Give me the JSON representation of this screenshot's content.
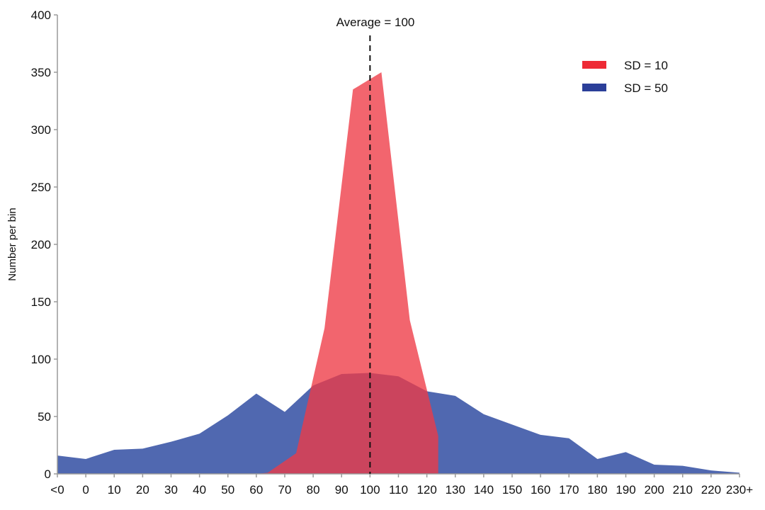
{
  "chart_data": {
    "type": "area",
    "title": "",
    "xlabel": "",
    "ylabel": "Number per bin",
    "ylim": [
      0,
      400
    ],
    "yticks": [
      0,
      50,
      100,
      150,
      200,
      250,
      300,
      350,
      400
    ],
    "categories": [
      "<0",
      "0",
      "10",
      "20",
      "30",
      "40",
      "50",
      "60",
      "70",
      "80",
      "90",
      "100",
      "110",
      "120",
      "130",
      "140",
      "150",
      "160",
      "170",
      "180",
      "190",
      "200",
      "210",
      "220",
      "230+"
    ],
    "grid": false,
    "legend_position": "top-right",
    "annotation": {
      "label": "Average = 100",
      "x_category": "100",
      "style": "dashed vertical line"
    },
    "series": [
      {
        "name": "SD = 10",
        "color": "#EE2A35",
        "fill": "#F0646A",
        "points": [
          {
            "x": 60,
            "y": 0
          },
          {
            "x": 64,
            "y": 1
          },
          {
            "x": 74,
            "y": 18
          },
          {
            "x": 84,
            "y": 127
          },
          {
            "x": 94,
            "y": 335
          },
          {
            "x": 104,
            "y": 350
          },
          {
            "x": 114,
            "y": 134
          },
          {
            "x": 124,
            "y": 33
          },
          {
            "x": 124,
            "y": 0
          }
        ]
      },
      {
        "name": "SD = 50",
        "color": "#2B3F99",
        "fill": "#5068B0",
        "values": [
          16,
          13,
          21,
          22,
          28,
          35,
          51,
          70,
          54,
          77,
          87,
          88,
          85,
          72,
          68,
          52,
          43,
          34,
          31,
          13,
          19,
          8,
          7,
          3,
          1
        ]
      }
    ]
  },
  "legend": {
    "items": [
      {
        "label": "SD = 10",
        "color": "#EE2A35"
      },
      {
        "label": "SD = 50",
        "color": "#2B3F99"
      }
    ]
  },
  "annotation_label": "Average = 100",
  "y_axis_title": "Number per bin"
}
